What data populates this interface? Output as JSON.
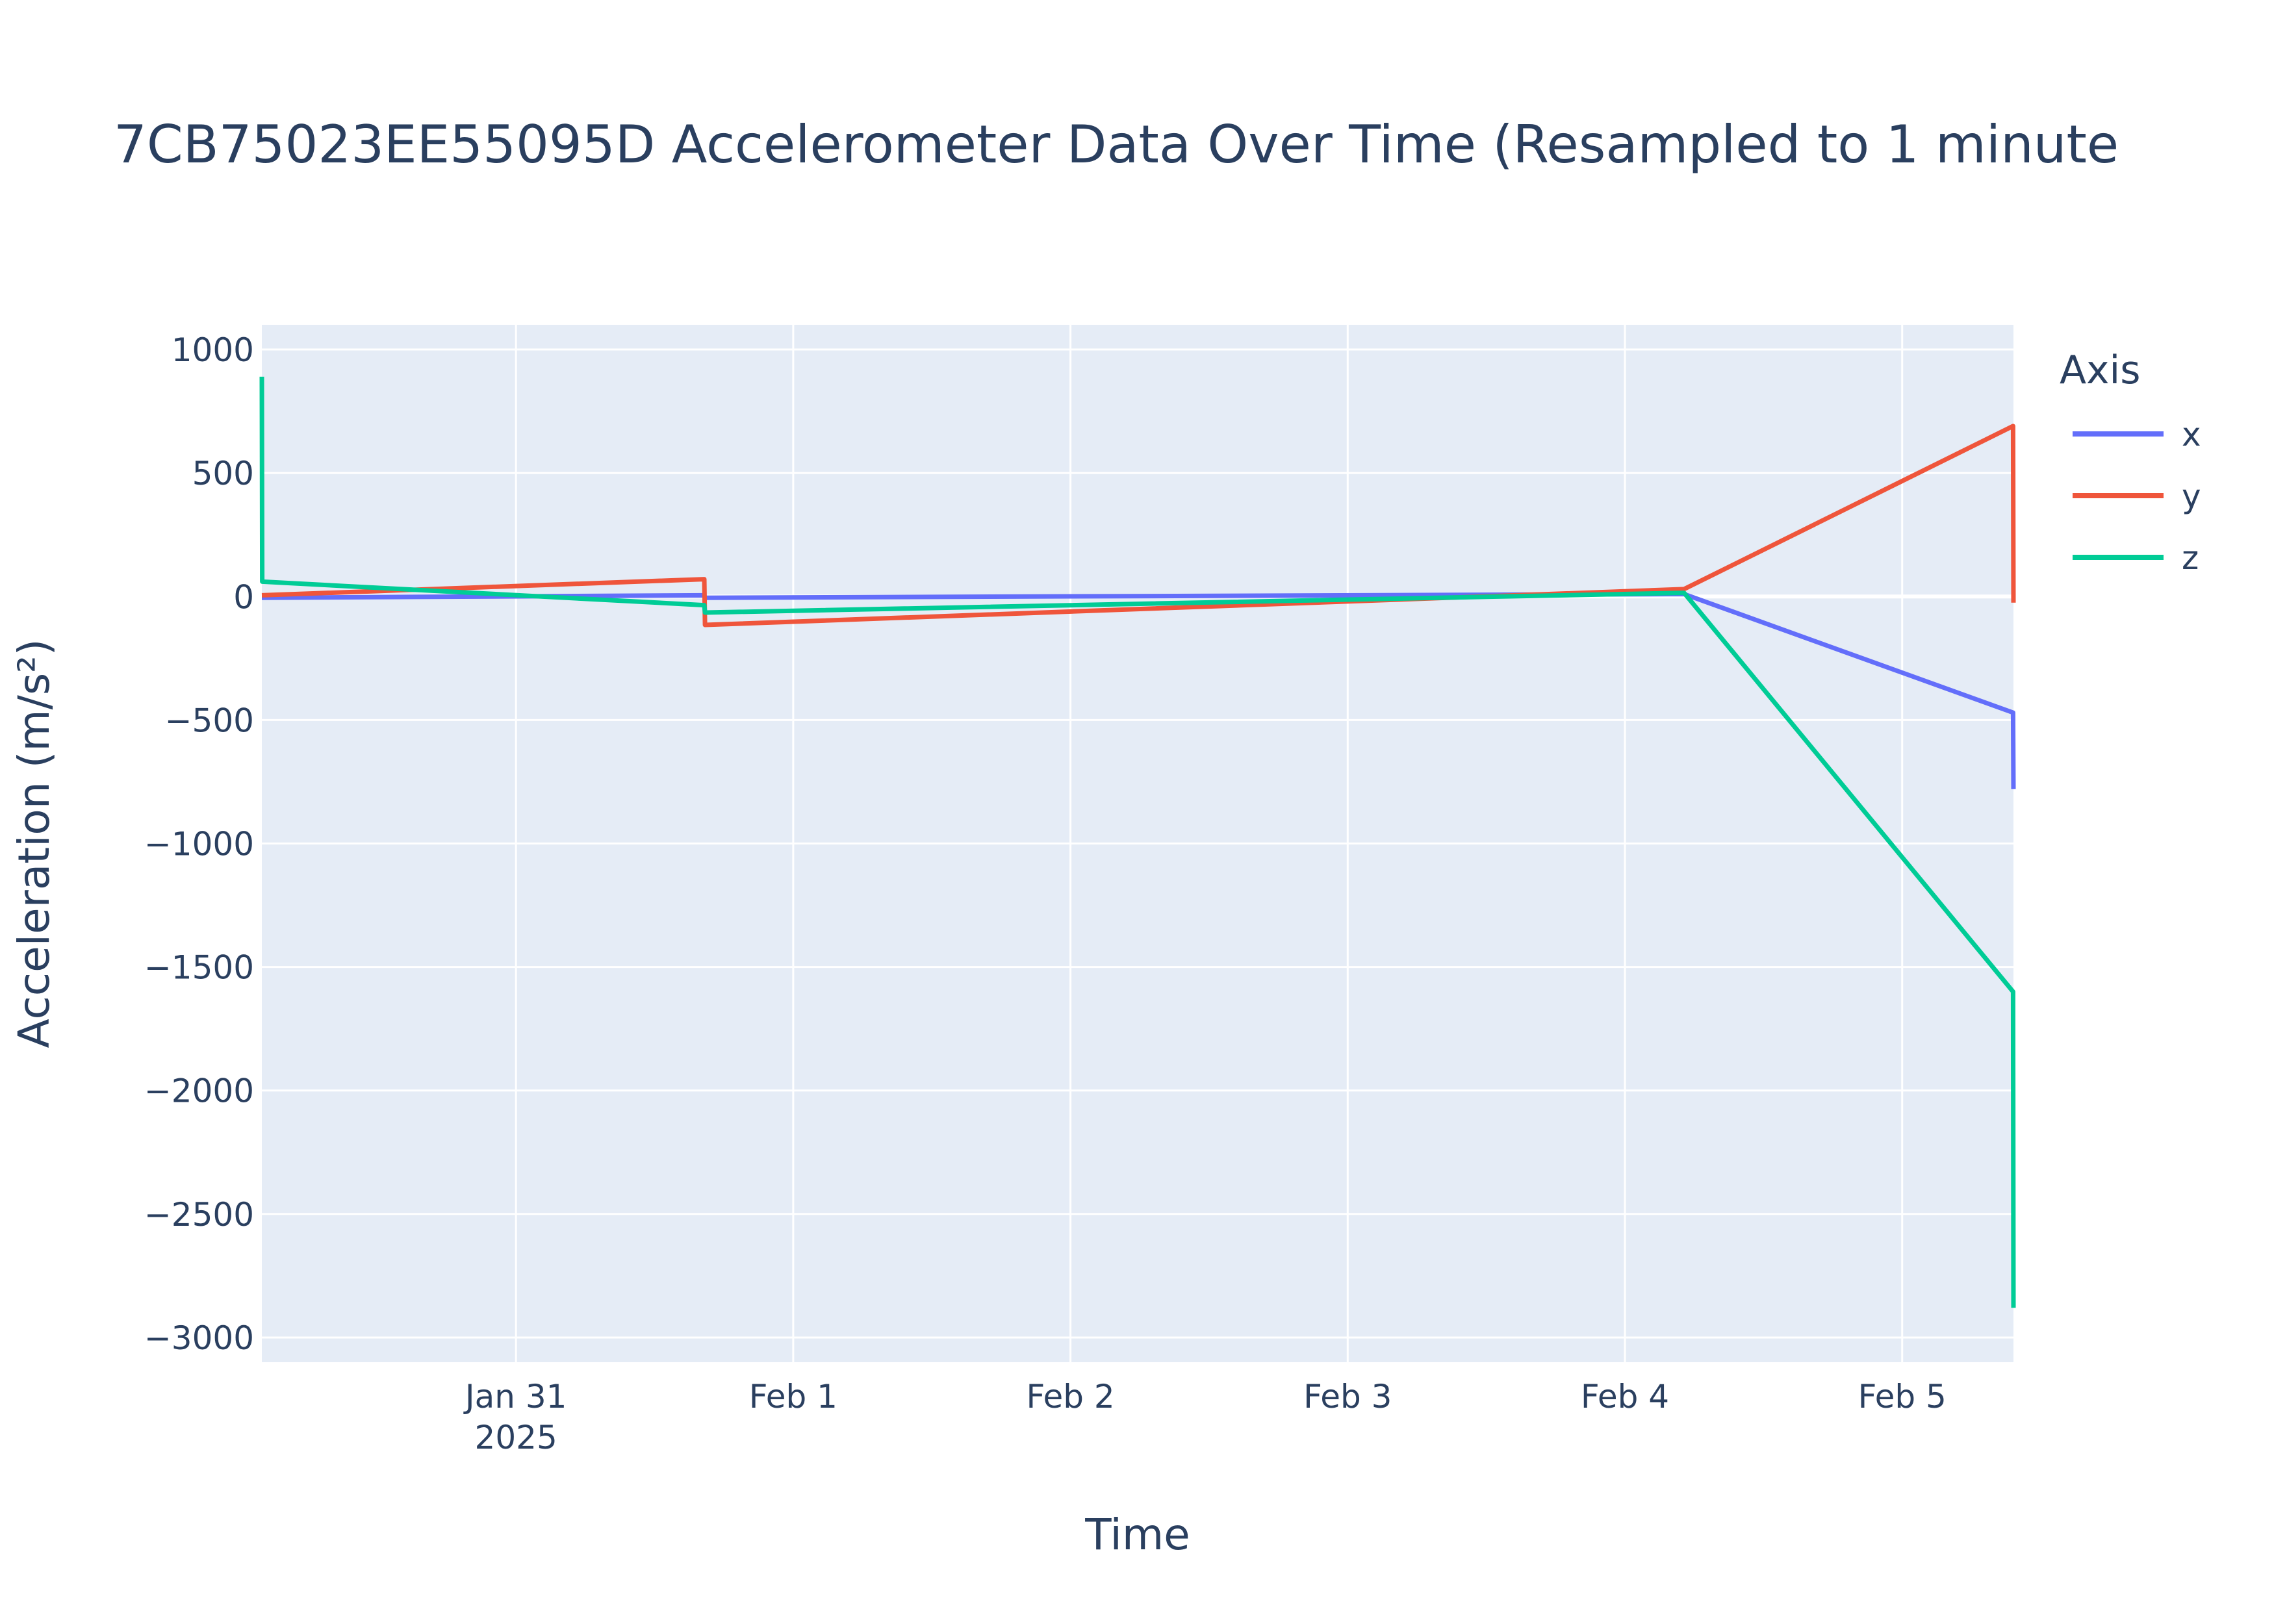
{
  "chart_data": {
    "type": "line",
    "title": "7CB75023EE55095D Accelerometer Data Over Time (Resampled to 1 minute",
    "xlabel": "Time",
    "ylabel": "Acceleration (m/s²)",
    "x_ticks": [
      {
        "value": "2025-01-31T00:00",
        "label": "Jan 31",
        "sublabel": "2025"
      },
      {
        "value": "2025-02-01T00:00",
        "label": "Feb 1"
      },
      {
        "value": "2025-02-02T00:00",
        "label": "Feb 2"
      },
      {
        "value": "2025-02-03T00:00",
        "label": "Feb 3"
      },
      {
        "value": "2025-02-04T00:00",
        "label": "Feb 4"
      },
      {
        "value": "2025-02-05T00:00",
        "label": "Feb 5"
      }
    ],
    "y_ticks": [
      1000,
      500,
      0,
      -500,
      -1000,
      -1500,
      -2000,
      -2500,
      -3000
    ],
    "y_tick_labels": [
      "1000",
      "500",
      "0",
      "−500",
      "−1000",
      "−1500",
      "−2000",
      "−2500",
      "−3000"
    ],
    "xlim": [
      "2025-01-30T02:00",
      "2025-02-05T09:38"
    ],
    "ylim": [
      -3100,
      1100
    ],
    "grid": true,
    "legend": {
      "title": "Axis",
      "placement": "right"
    },
    "series": [
      {
        "name": "x",
        "color": "#636efa",
        "points": [
          [
            "2025-01-30T02:00",
            -5
          ],
          [
            "2025-01-31T16:18",
            5
          ],
          [
            "2025-01-31T16:22",
            -5
          ],
          [
            "2025-02-04T05:07",
            10
          ],
          [
            "2025-02-05T09:36",
            -470
          ],
          [
            "2025-02-05T09:38",
            -780
          ]
        ]
      },
      {
        "name": "y",
        "color": "#ef553b",
        "points": [
          [
            "2025-01-30T02:00",
            5
          ],
          [
            "2025-01-31T16:18",
            70
          ],
          [
            "2025-01-31T16:22",
            -115
          ],
          [
            "2025-02-04T05:07",
            30
          ],
          [
            "2025-02-05T09:36",
            690
          ],
          [
            "2025-02-05T09:38",
            -25
          ]
        ]
      },
      {
        "name": "z",
        "color": "#00cc96",
        "points": [
          [
            "2025-01-30T02:00",
            890
          ],
          [
            "2025-01-30T02:02",
            60
          ],
          [
            "2025-01-31T16:18",
            -35
          ],
          [
            "2025-01-31T16:22",
            -65
          ],
          [
            "2025-02-04T05:07",
            15
          ],
          [
            "2025-02-05T09:36",
            -1600
          ],
          [
            "2025-02-05T09:38",
            -2880
          ]
        ]
      }
    ]
  }
}
